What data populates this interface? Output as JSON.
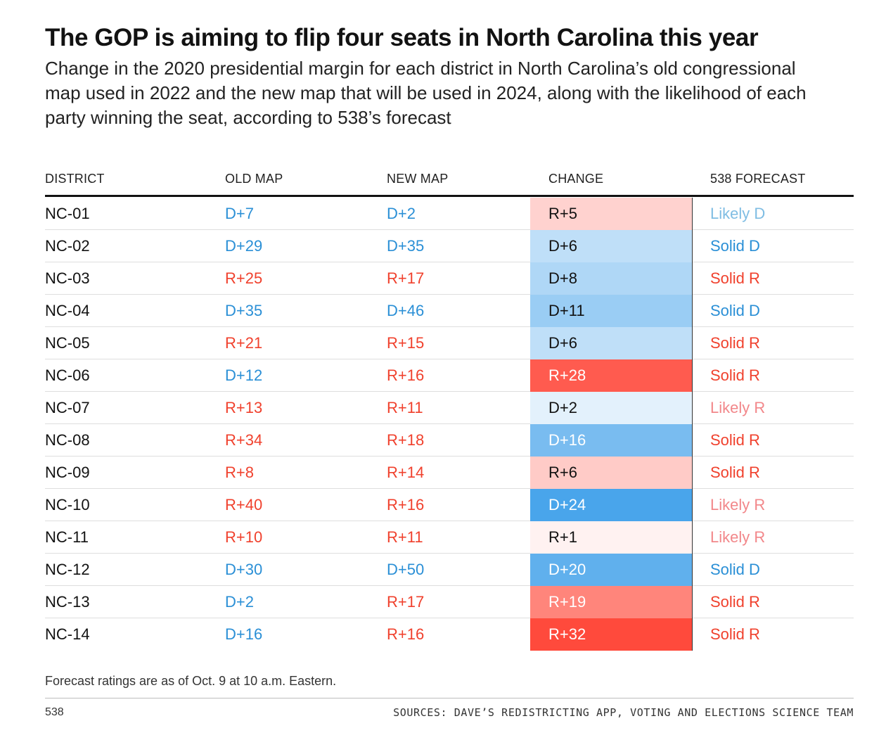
{
  "title": "The GOP is aiming to flip four seats in North Carolina this year",
  "subtitle": "Change in the 2020 presidential margin for each district in North Carolina’s old congressional map used in 2022 and the new map that will be used in 2024, along with the likelihood of each party winning the seat, according to 538’s forecast",
  "colors": {
    "dem": "#2a8fd6",
    "rep": "#f0412d",
    "likely_dem": "#7fbde3",
    "likely_rep": "#f2878a",
    "dem_scale_max": "#1d8fe6",
    "rep_scale_max": "#ff4a3c"
  },
  "chart_data": {
    "type": "table",
    "columns": [
      "DISTRICT",
      "OLD MAP",
      "NEW MAP",
      "CHANGE",
      "538 FORECAST"
    ],
    "change_scale_max": 32,
    "rows": [
      {
        "district": "NC-01",
        "old_map": "D+7",
        "new_map": "D+2",
        "change": "R+5",
        "change_party": "R",
        "change_value": 5,
        "forecast": "Likely D"
      },
      {
        "district": "NC-02",
        "old_map": "D+29",
        "new_map": "D+35",
        "change": "D+6",
        "change_party": "D",
        "change_value": 6,
        "forecast": "Solid D"
      },
      {
        "district": "NC-03",
        "old_map": "R+25",
        "new_map": "R+17",
        "change": "D+8",
        "change_party": "D",
        "change_value": 8,
        "forecast": "Solid R"
      },
      {
        "district": "NC-04",
        "old_map": "D+35",
        "new_map": "D+46",
        "change": "D+11",
        "change_party": "D",
        "change_value": 11,
        "forecast": "Solid D"
      },
      {
        "district": "NC-05",
        "old_map": "R+21",
        "new_map": "R+15",
        "change": "D+6",
        "change_party": "D",
        "change_value": 6,
        "forecast": "Solid R"
      },
      {
        "district": "NC-06",
        "old_map": "D+12",
        "new_map": "R+16",
        "change": "R+28",
        "change_party": "R",
        "change_value": 28,
        "forecast": "Solid R"
      },
      {
        "district": "NC-07",
        "old_map": "R+13",
        "new_map": "R+11",
        "change": "D+2",
        "change_party": "D",
        "change_value": 2,
        "forecast": "Likely R"
      },
      {
        "district": "NC-08",
        "old_map": "R+34",
        "new_map": "R+18",
        "change": "D+16",
        "change_party": "D",
        "change_value": 16,
        "forecast": "Solid R"
      },
      {
        "district": "NC-09",
        "old_map": "R+8",
        "new_map": "R+14",
        "change": "R+6",
        "change_party": "R",
        "change_value": 6,
        "forecast": "Solid R"
      },
      {
        "district": "NC-10",
        "old_map": "R+40",
        "new_map": "R+16",
        "change": "D+24",
        "change_party": "D",
        "change_value": 24,
        "forecast": "Likely R"
      },
      {
        "district": "NC-11",
        "old_map": "R+10",
        "new_map": "R+11",
        "change": "R+1",
        "change_party": "R",
        "change_value": 1,
        "forecast": "Likely R"
      },
      {
        "district": "NC-12",
        "old_map": "D+30",
        "new_map": "D+50",
        "change": "D+20",
        "change_party": "D",
        "change_value": 20,
        "forecast": "Solid D"
      },
      {
        "district": "NC-13",
        "old_map": "D+2",
        "new_map": "R+17",
        "change": "R+19",
        "change_party": "R",
        "change_value": 19,
        "forecast": "Solid R"
      },
      {
        "district": "NC-14",
        "old_map": "D+16",
        "new_map": "R+16",
        "change": "R+32",
        "change_party": "R",
        "change_value": 32,
        "forecast": "Solid R"
      }
    ]
  },
  "footer": {
    "note": "Forecast ratings are as of Oct. 9 at 10 a.m. Eastern.",
    "brand": "538",
    "sources": "SOURCES: DAVE’S REDISTRICTING APP, VOTING AND ELECTIONS SCIENCE TEAM"
  }
}
